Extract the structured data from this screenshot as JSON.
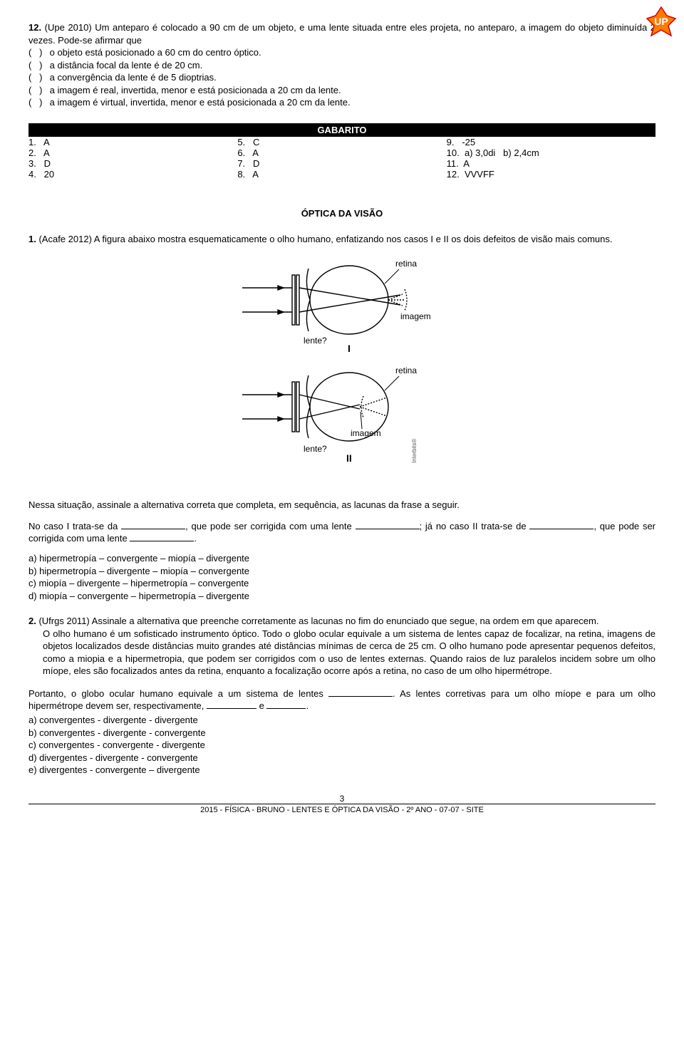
{
  "logo": {
    "fill": "#ff7b00",
    "stroke": "#d40000",
    "text": "UP"
  },
  "q12": {
    "num_label": "12.",
    "stem": "(Upe 2010) Um anteparo é colocado a 90 cm de um objeto, e uma lente situada entre eles projeta, no anteparo, a imagem do objeto diminuída 2 vezes. Pode-se afirmar que",
    "choices": [
      "o objeto está posicionado a 60 cm do centro óptico.",
      "a distância focal da lente é de 20 cm.",
      "a convergência da lente é de 5 dioptrias.",
      "a imagem é real, invertida, menor e está posicionada a 20 cm da lente.",
      "a imagem é virtual, invertida, menor e está posicionada a 20 cm da lente."
    ]
  },
  "gabarito": {
    "title": "GABARITO",
    "col1": [
      "1.   A",
      "2.   A",
      "3.   D",
      "4.   20"
    ],
    "col2": [
      "5.   C",
      "6.   A",
      "7.   D",
      "8.   A"
    ],
    "col3": [
      "9.   -25",
      "10.  a) 3,0di   b) 2,4cm",
      "11.  A",
      "12.  VVVFF"
    ]
  },
  "section2_title": "ÓPTICA DA VISÃO",
  "q1": {
    "num_label": "1.",
    "stem": "(Acafe 2012) A figura abaixo mostra esquematicamente o olho humano, enfatizando nos casos I e II os dois defeitos de visão mais comuns.",
    "diagram": {
      "labels": {
        "retina": "retina",
        "imagem": "imagem",
        "lente": "lente?",
        "I": "I",
        "II": "II"
      },
      "font_size": 12,
      "stroke": "#000000"
    },
    "post_diag": "Nessa situação, assinale a alternativa correta que completa, em sequência, as lacunas da frase a seguir.",
    "fill_sentence_parts": [
      "No caso I trata-se da ",
      ", que pode ser corrigida com uma lente ",
      "; já no caso II trata-se de ",
      ", que pode ser corrigida com uma lente ",
      "."
    ],
    "opts": [
      "a)  hipermetropía – convergente – miopía – divergente",
      "b)  hipermetropía – divergente – miopía – convergente",
      "c)  miopía – divergente – hipermetropía – convergente",
      "d)  miopía – convergente – hipermetropía – divergente"
    ]
  },
  "q2": {
    "num_label": "2.",
    "stem1": "(Ufrgs 2011)  Assinale a alternativa que preenche corretamente as lacunas no fim do enunciado que segue, na ordem em que aparecem.",
    "stem_body": "O olho humano é um sofisticado instrumento óptico. Todo o globo ocular equivale a um sistema de lentes capaz de focalizar, na retina, imagens de objetos localizados desde distâncias muito grandes até distâncias mínimas de cerca de 25 cm. O olho humano pode apresentar pequenos defeitos, como a miopia e a hipermetropia, que podem ser corrigidos com o uso de lentes externas. Quando raios de luz paralelos incidem sobre um olho míope, eles são focalizados antes da retina, enquanto a focalização ocorre após a retina, no caso de um olho hipermétrope.",
    "portanto_parts": [
      "Portanto, o globo ocular humano equivale a um sistema de lentes ",
      ". As lentes corretivas para um olho míope e para um olho hipermétrope devem ser, respectivamente, ",
      " e ",
      "."
    ],
    "opts": [
      "a) convergentes - divergente - divergente",
      "b) convergentes - divergente - convergente",
      "c) convergentes - convergente - divergente",
      "d) divergentes - divergente - convergente",
      "e) divergentes - convergente – divergente"
    ]
  },
  "footer": {
    "page": "3",
    "line": "2015 - FÍSICA - BRUNO - LENTES E ÓPTICA DA VISÃO - 2º ANO - 07-07 - SITE"
  }
}
